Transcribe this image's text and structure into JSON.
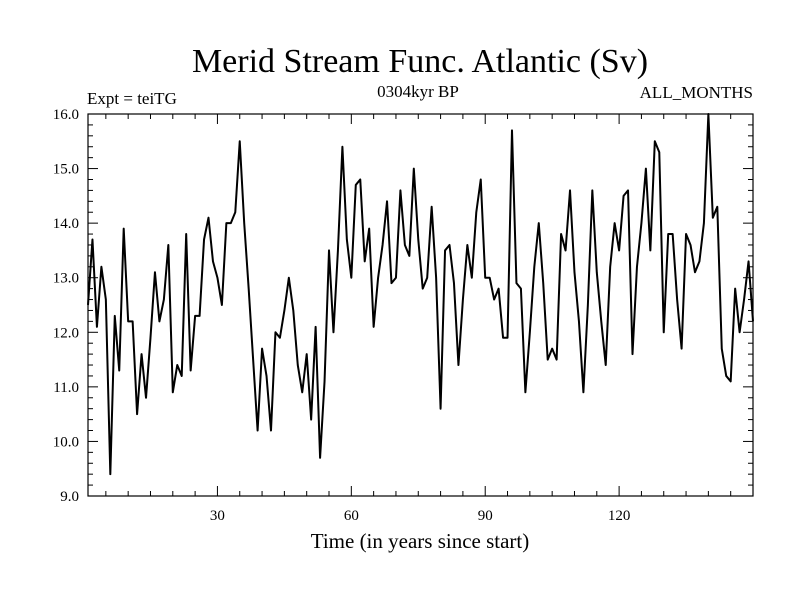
{
  "chart_data": {
    "type": "line",
    "title": "Merid Stream Func. Atlantic (Sv)",
    "subtitle_left": "Expt = teiTG",
    "subtitle_center": "0304kyr BP",
    "subtitle_right": "ALL_MONTHS",
    "xlabel": "Time (in years since start)",
    "ylabel": "",
    "xlim": [
      1,
      150
    ],
    "ylim": [
      9.0,
      16.0
    ],
    "xticks": [
      30,
      60,
      90,
      120
    ],
    "xtick_labels": [
      "30",
      "60",
      "90",
      "120"
    ],
    "yticks": [
      9.0,
      10.0,
      11.0,
      12.0,
      13.0,
      14.0,
      15.0,
      16.0
    ],
    "ytick_labels": [
      "9.0",
      "10.0",
      "11.0",
      "12.0",
      "13.0",
      "14.0",
      "15.0",
      "16.0"
    ],
    "grid": false,
    "series": [
      {
        "name": "Merid Stream Func. Atlantic",
        "x_start": 1,
        "x_step": 1,
        "values": [
          12.5,
          13.7,
          12.1,
          13.2,
          12.6,
          9.4,
          12.3,
          11.3,
          13.9,
          12.2,
          12.2,
          10.5,
          11.6,
          10.8,
          11.9,
          13.1,
          12.2,
          12.6,
          13.6,
          10.9,
          11.4,
          11.2,
          13.8,
          11.3,
          12.3,
          12.3,
          13.7,
          14.1,
          13.3,
          13.0,
          12.5,
          14.0,
          14.0,
          14.2,
          15.5,
          14.0,
          12.8,
          11.5,
          10.2,
          11.7,
          11.2,
          10.2,
          12.0,
          11.9,
          12.4,
          13.0,
          12.4,
          11.4,
          10.9,
          11.6,
          10.4,
          12.1,
          9.7,
          11.1,
          13.5,
          12.0,
          13.5,
          15.4,
          13.7,
          13.0,
          14.7,
          14.8,
          13.3,
          13.9,
          12.1,
          13.0,
          13.6,
          14.4,
          12.9,
          13.0,
          14.6,
          13.6,
          13.4,
          15.0,
          13.7,
          12.8,
          13.0,
          14.3,
          13.0,
          10.6,
          13.5,
          13.6,
          12.9,
          11.4,
          12.6,
          13.6,
          13.0,
          14.2,
          14.8,
          13.0,
          13.0,
          12.6,
          12.8,
          11.9,
          11.9,
          15.7,
          12.9,
          12.8,
          10.9,
          12.0,
          13.2,
          14.0,
          12.9,
          11.5,
          11.7,
          11.5,
          13.8,
          13.5,
          14.6,
          13.1,
          12.2,
          10.9,
          12.5,
          14.6,
          13.1,
          12.2,
          11.4,
          13.2,
          14.0,
          13.5,
          14.5,
          14.6,
          11.6,
          13.2,
          14.0,
          15.0,
          13.5,
          15.5,
          15.3,
          12.0,
          13.8,
          13.8,
          12.6,
          11.7,
          13.8,
          13.6,
          13.1,
          13.3,
          14.0,
          16.0,
          14.1,
          14.3,
          11.7,
          11.2,
          11.1,
          12.8,
          12.0,
          12.6,
          13.3,
          12.2
        ]
      }
    ]
  },
  "colors": {
    "line": "#000000",
    "background": "#ffffff",
    "axis": "#000000"
  }
}
